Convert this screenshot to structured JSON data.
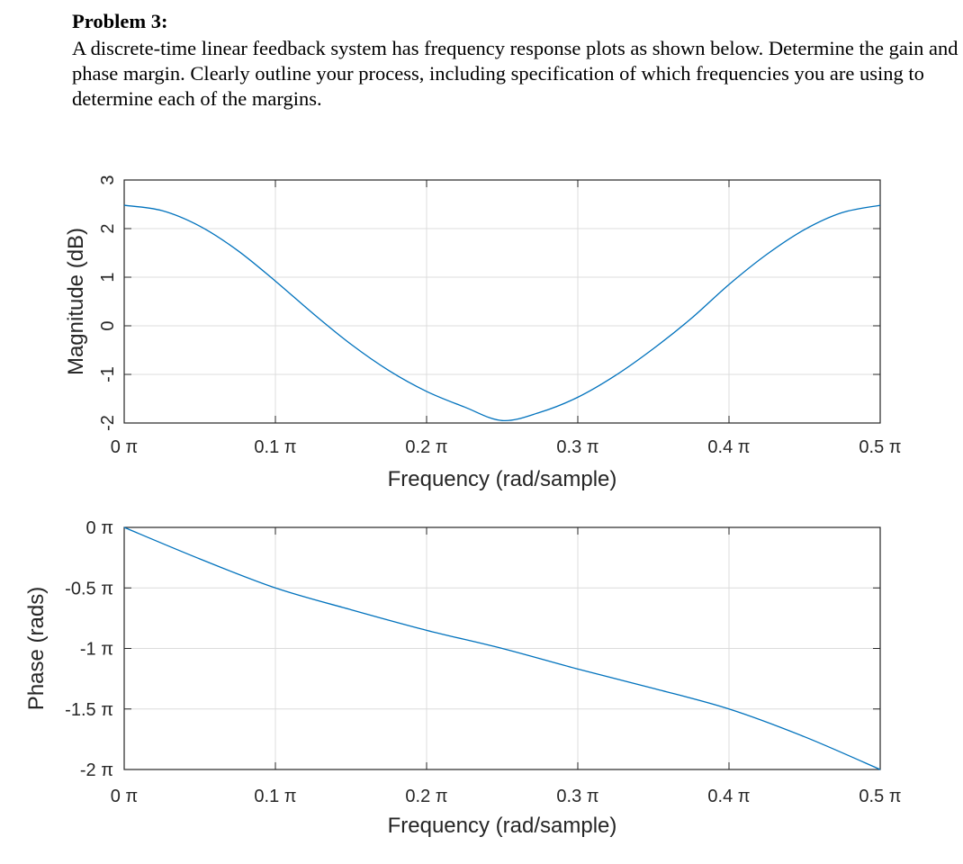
{
  "problem": {
    "title": "Problem 3:",
    "body": "A discrete-time linear feedback system has frequency response plots as shown below.  Determine the gain and phase margin.  Clearly outline your process, including specification of which frequencies you are using to determine each of the margins."
  },
  "colors": {
    "series": "#0072bd",
    "grid": "#dcdcdc",
    "axis": "#262626"
  },
  "chart_data": [
    {
      "type": "line",
      "title": "",
      "xlabel": "Frequency (rad/sample)",
      "ylabel": "Magnitude (dB)",
      "xlim": [
        0,
        0.5
      ],
      "ylim": [
        -2,
        3
      ],
      "grid": true,
      "x_unit": "π rad/sample",
      "xticks": [
        0,
        0.1,
        0.2,
        0.3,
        0.4,
        0.5
      ],
      "xtick_labels": [
        "0 π",
        "0.1 π",
        "0.2 π",
        "0.3 π",
        "0.4 π",
        "0.5 π"
      ],
      "yticks": [
        3,
        2,
        1,
        0,
        -1,
        -2
      ],
      "ytick_labels": [
        "3",
        "2",
        "1",
        "0",
        "-1",
        "-2"
      ],
      "series": [
        {
          "x": [
            0,
            0.025,
            0.05,
            0.075,
            0.1,
            0.125,
            0.15,
            0.175,
            0.2,
            0.225,
            0.25,
            0.275,
            0.3,
            0.325,
            0.35,
            0.375,
            0.4,
            0.425,
            0.45,
            0.475,
            0.5
          ],
          "values": [
            2.48,
            2.37,
            2.05,
            1.55,
            0.92,
            0.25,
            -0.38,
            -0.92,
            -1.35,
            -1.67,
            -1.95,
            -1.78,
            -1.47,
            -1.02,
            -0.47,
            0.15,
            0.85,
            1.47,
            1.98,
            2.33,
            2.48
          ]
        }
      ]
    },
    {
      "type": "line",
      "title": "",
      "xlabel": "Frequency (rad/sample)",
      "ylabel": "Phase (rads)",
      "xlim": [
        0,
        0.5
      ],
      "ylim": [
        -2,
        0
      ],
      "grid": true,
      "x_unit": "π rad/sample",
      "y_unit": "π rad",
      "xticks": [
        0,
        0.1,
        0.2,
        0.3,
        0.4,
        0.5
      ],
      "xtick_labels": [
        "0 π",
        "0.1 π",
        "0.2 π",
        "0.3 π",
        "0.4 π",
        "0.5 π"
      ],
      "yticks": [
        0,
        -0.5,
        -1,
        -1.5,
        -2
      ],
      "ytick_labels": [
        "0 π",
        "-0.5 π",
        "-1 π",
        "-1.5 π",
        "-2 π"
      ],
      "series": [
        {
          "x": [
            0,
            0.05,
            0.1,
            0.15,
            0.2,
            0.25,
            0.3,
            0.35,
            0.4,
            0.45,
            0.5
          ],
          "values": [
            0,
            -0.26,
            -0.5,
            -0.68,
            -0.85,
            -1.0,
            -1.17,
            -1.33,
            -1.5,
            -1.73,
            -2.0
          ]
        }
      ]
    }
  ]
}
